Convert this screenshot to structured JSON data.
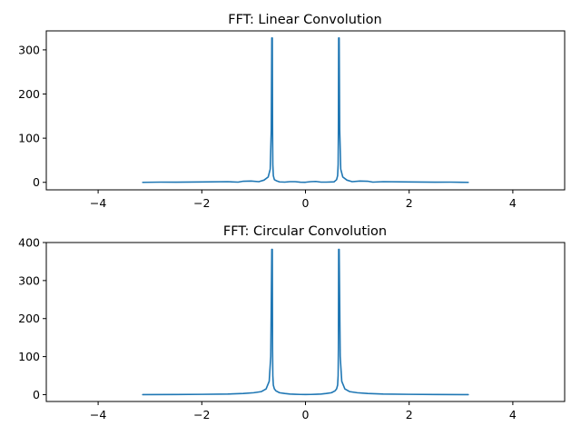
{
  "colors": {
    "series": "#1f77b4",
    "background": "#ffffff"
  },
  "chart_data": [
    {
      "type": "line",
      "title": "FFT: Linear Convolution",
      "xlabel": "",
      "ylabel": "",
      "xlim": [
        -5,
        5
      ],
      "ylim": [
        -17,
        343
      ],
      "xticks": [
        -4,
        -2,
        0,
        2,
        4
      ],
      "xtick_labels": [
        "−4",
        "−2",
        "0",
        "2",
        "4"
      ],
      "yticks": [
        0,
        100,
        200,
        300
      ],
      "ytick_labels": [
        "0",
        "100",
        "200",
        "300"
      ],
      "grid": false,
      "legend": "none",
      "series": [
        {
          "x": [
            -3.14,
            -2.8,
            -2.5,
            -2.0,
            -1.5,
            -1.3,
            -1.2,
            -1.05,
            -0.9,
            -0.8,
            -0.72,
            -0.68,
            -0.66,
            -0.65,
            -0.64,
            -0.635,
            -0.63,
            -0.62,
            -0.6,
            -0.55,
            -0.5,
            -0.4,
            -0.3,
            -0.2,
            -0.1,
            0.0,
            0.1,
            0.2,
            0.3,
            0.4,
            0.5,
            0.55,
            0.6,
            0.62,
            0.63,
            0.635,
            0.64,
            0.65,
            0.66,
            0.68,
            0.72,
            0.8,
            0.9,
            1.05,
            1.2,
            1.3,
            1.5,
            2.0,
            2.5,
            2.8,
            3.14
          ],
          "y": [
            0,
            0.5,
            0.3,
            0.8,
            1.5,
            0.5,
            2.5,
            3,
            1.5,
            5,
            12,
            30,
            120,
            327,
            327,
            120,
            40,
            15,
            6,
            3,
            1,
            0.5,
            1.5,
            1.5,
            0.3,
            0.2,
            1.5,
            2,
            0.5,
            0.5,
            0.8,
            1,
            6,
            15,
            40,
            120,
            327,
            327,
            120,
            30,
            12,
            5,
            1.5,
            3,
            2.5,
            0.5,
            1.5,
            0.8,
            0.3,
            0.5,
            0
          ]
        }
      ]
    },
    {
      "type": "line",
      "title": "FFT: Circular Convolution",
      "xlabel": "",
      "ylabel": "",
      "xlim": [
        -5,
        5
      ],
      "ylim": [
        -18,
        400
      ],
      "xticks": [
        -4,
        -2,
        0,
        2,
        4
      ],
      "xtick_labels": [
        "−4",
        "−2",
        "0",
        "2",
        "4"
      ],
      "yticks": [
        0,
        100,
        200,
        300,
        400
      ],
      "ytick_labels": [
        "0",
        "100",
        "200",
        "300",
        "400"
      ],
      "grid": false,
      "legend": "none",
      "series": [
        {
          "x": [
            -3.14,
            -2.5,
            -2.0,
            -1.5,
            -1.2,
            -1.0,
            -0.85,
            -0.76,
            -0.7,
            -0.67,
            -0.65,
            -0.64,
            -0.635,
            -0.63,
            -0.62,
            -0.6,
            -0.57,
            -0.5,
            -0.4,
            -0.3,
            -0.2,
            -0.1,
            0.0,
            0.1,
            0.2,
            0.3,
            0.4,
            0.5,
            0.57,
            0.6,
            0.62,
            0.63,
            0.635,
            0.64,
            0.65,
            0.67,
            0.7,
            0.76,
            0.85,
            1.0,
            1.2,
            1.5,
            2.0,
            2.5,
            3.14
          ],
          "y": [
            0,
            0.3,
            0.8,
            1.5,
            3,
            5,
            8,
            15,
            35,
            100,
            382,
            382,
            120,
            50,
            25,
            15,
            10,
            5,
            3,
            1.5,
            1,
            0.5,
            0.3,
            0.5,
            1,
            1.5,
            3,
            5,
            10,
            15,
            25,
            50,
            120,
            382,
            382,
            100,
            35,
            15,
            8,
            5,
            3,
            1.5,
            0.8,
            0.3,
            0
          ]
        }
      ]
    }
  ]
}
